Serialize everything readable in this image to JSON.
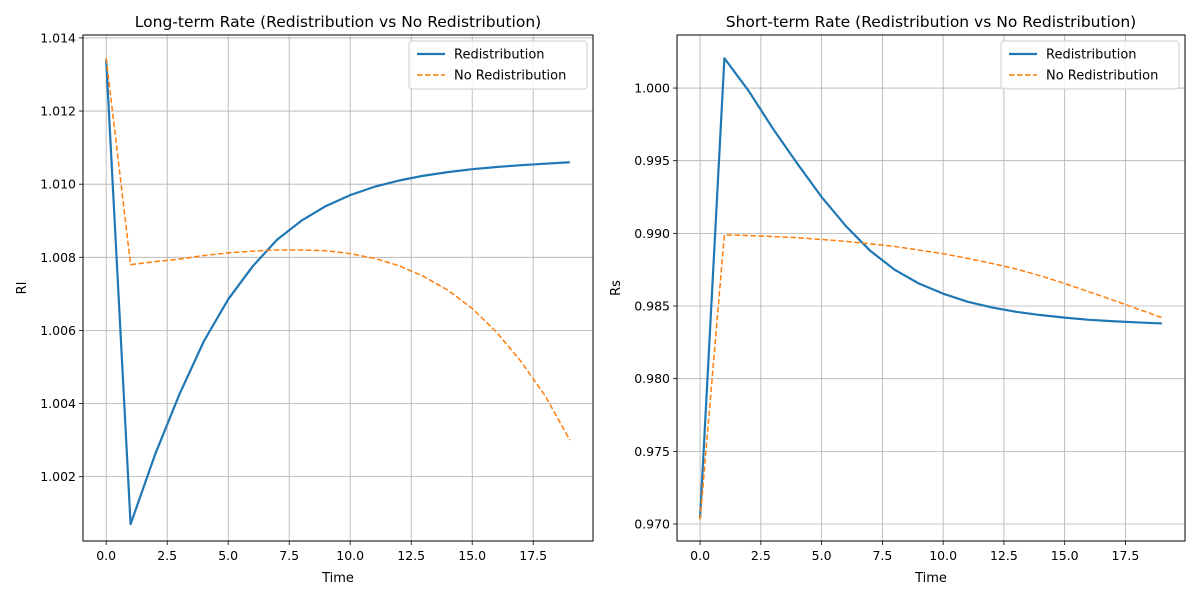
{
  "chart_data": [
    {
      "type": "line",
      "title": "Long-term Rate (Redistribution vs No Redistribution)",
      "xlabel": "Time",
      "ylabel": "Rl",
      "xlim": [
        -0.95,
        19.95
      ],
      "ylim": [
        1.00024,
        1.01408
      ],
      "xticks": [
        0.0,
        2.5,
        5.0,
        7.5,
        10.0,
        12.5,
        15.0,
        17.5
      ],
      "xtick_labels": [
        "0.0",
        "2.5",
        "5.0",
        "7.5",
        "10.0",
        "12.5",
        "15.0",
        "17.5"
      ],
      "yticks": [
        1.002,
        1.004,
        1.006,
        1.008,
        1.01,
        1.012,
        1.014
      ],
      "ytick_labels": [
        "1.002",
        "1.004",
        "1.006",
        "1.008",
        "1.010",
        "1.012",
        "1.014"
      ],
      "grid": true,
      "legend": "top-right",
      "x": [
        0,
        1,
        2,
        3,
        4,
        5,
        6,
        7,
        8,
        9,
        10,
        11,
        12,
        13,
        14,
        15,
        16,
        17,
        18,
        19
      ],
      "series": [
        {
          "name": "Redistribution",
          "color": "#1f77b4",
          "style": "solid",
          "values": [
            1.0134,
            1.0007,
            1.0026,
            1.00425,
            1.0057,
            1.00685,
            1.00775,
            1.00848,
            1.009,
            1.0094,
            1.0097,
            1.00993,
            1.0101,
            1.01023,
            1.01033,
            1.01041,
            1.01047,
            1.01052,
            1.01056,
            1.0106
          ]
        },
        {
          "name": "No Redistribution",
          "color": "#ff7f0e",
          "style": "dashed",
          "values": [
            1.01345,
            1.0078,
            1.00788,
            1.00795,
            1.00805,
            1.00812,
            1.00817,
            1.0082,
            1.0082,
            1.00818,
            1.0081,
            1.00797,
            1.00777,
            1.00748,
            1.0071,
            1.0066,
            1.00595,
            1.00515,
            1.0042,
            1.003
          ]
        }
      ]
    },
    {
      "type": "line",
      "title": "Short-term Rate (Redistribution vs No Redistribution)",
      "xlabel": "Time",
      "ylabel": "Rs",
      "xlim": [
        -0.95,
        19.95
      ],
      "ylim": [
        0.96883,
        1.00365
      ],
      "xticks": [
        0.0,
        2.5,
        5.0,
        7.5,
        10.0,
        12.5,
        15.0,
        17.5
      ],
      "xtick_labels": [
        "0.0",
        "2.5",
        "5.0",
        "7.5",
        "10.0",
        "12.5",
        "15.0",
        "17.5"
      ],
      "yticks": [
        0.97,
        0.975,
        0.98,
        0.985,
        0.99,
        0.995,
        1.0
      ],
      "ytick_labels": [
        "0.970",
        "0.975",
        "0.980",
        "0.985",
        "0.990",
        "0.995",
        "1.000"
      ],
      "grid": true,
      "legend": "top-right",
      "x": [
        0,
        1,
        2,
        3,
        4,
        5,
        6,
        7,
        8,
        9,
        10,
        11,
        12,
        13,
        14,
        15,
        16,
        17,
        18,
        19
      ],
      "series": [
        {
          "name": "Redistribution",
          "color": "#1f77b4",
          "style": "solid",
          "values": [
            0.9704,
            1.00205,
            0.9998,
            0.9972,
            0.9948,
            0.9925,
            0.9905,
            0.9888,
            0.9875,
            0.98655,
            0.98585,
            0.9853,
            0.9849,
            0.9846,
            0.98438,
            0.9842,
            0.98405,
            0.98395,
            0.98387,
            0.9838
          ]
        },
        {
          "name": "No Redistribution",
          "color": "#ff7f0e",
          "style": "dashed",
          "values": [
            0.9703,
            0.9899,
            0.98985,
            0.98978,
            0.9897,
            0.98958,
            0.98945,
            0.98928,
            0.9891,
            0.98885,
            0.9886,
            0.98828,
            0.98793,
            0.98755,
            0.98708,
            0.98655,
            0.98598,
            0.9854,
            0.9848,
            0.9842
          ]
        }
      ]
    }
  ]
}
